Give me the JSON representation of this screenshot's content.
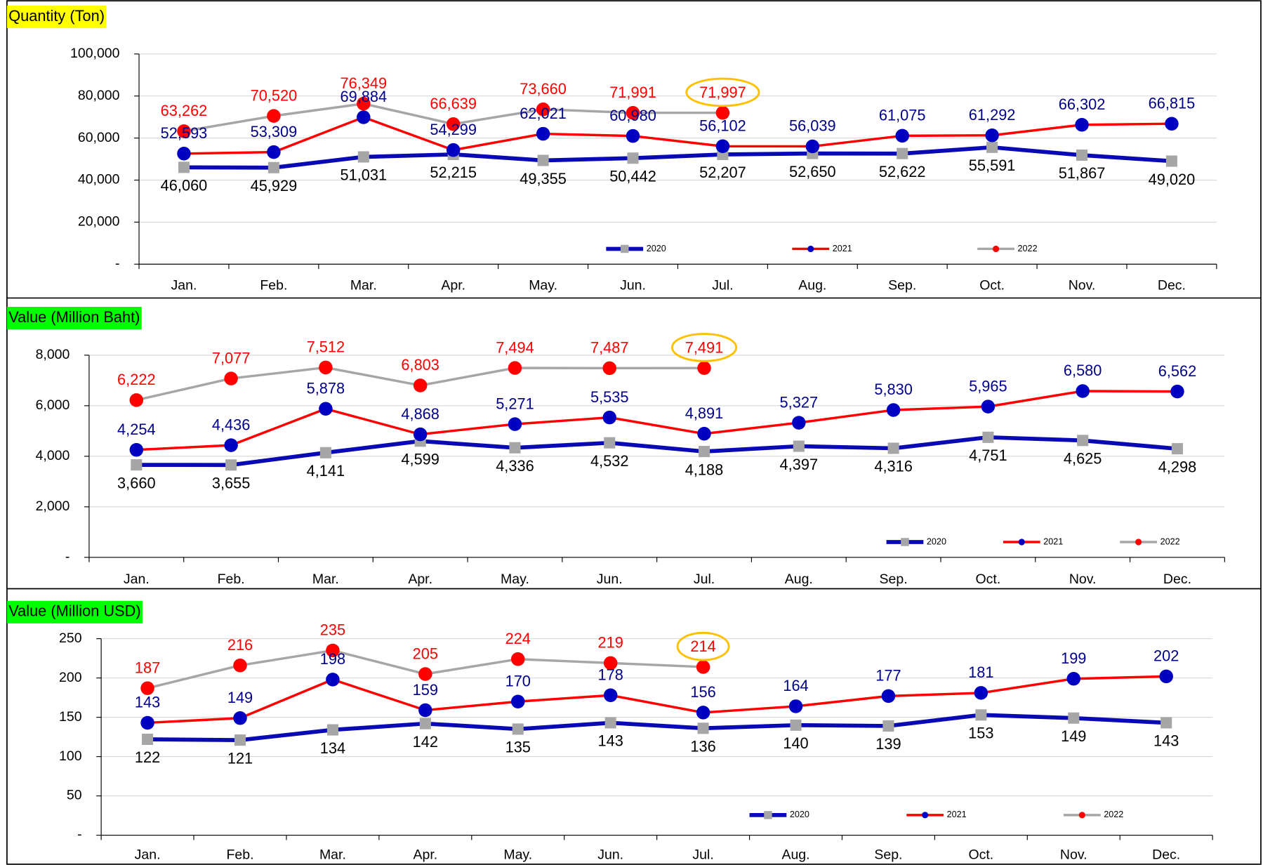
{
  "chart_data": [
    {
      "type": "line",
      "title": "Quantity (Ton)",
      "title_color": "#ffff00",
      "categories": [
        "Jan.",
        "Feb.",
        "Mar.",
        "Apr.",
        "May.",
        "Jun.",
        "Jul.",
        "Aug.",
        "Sep.",
        "Oct.",
        "Nov.",
        "Dec."
      ],
      "ylim": [
        0,
        100000
      ],
      "yticks": [
        {
          "value": 0,
          "label": "-"
        },
        {
          "value": 20000,
          "label": "20,000"
        },
        {
          "value": 40000,
          "label": "40,000"
        },
        {
          "value": 60000,
          "label": "60,000"
        },
        {
          "value": 80000,
          "label": "80,000"
        },
        {
          "value": 100000,
          "label": "100,000"
        }
      ],
      "grid": true,
      "series": [
        {
          "name": "2020",
          "color": "#0a0ab4",
          "marker": "square",
          "marker_color": "#a6a6a6",
          "label_color": "#000000",
          "values": [
            46060,
            45929,
            51031,
            52215,
            49355,
            50442,
            52207,
            52650,
            52622,
            55591,
            51867,
            49020
          ],
          "value_labels": [
            "46,060",
            "45,929",
            "51,031",
            "52,215",
            "49,355",
            "50,442",
            "52,207",
            "52,650",
            "52,622",
            "55,591",
            "51,867",
            "49,020"
          ]
        },
        {
          "name": "2021",
          "color": "#ff0000",
          "marker": "circle",
          "marker_color": "#0000c0",
          "label_color": "#00008b",
          "values": [
            52593,
            53309,
            69884,
            54299,
            62021,
            60980,
            56102,
            56039,
            61075,
            61292,
            66302,
            66815
          ],
          "value_labels": [
            "52,593",
            "53,309",
            "69,884",
            "54,299",
            "62,021",
            "60,980",
            "56,102",
            "56,039",
            "61,075",
            "61,292",
            "66,302",
            "66,815"
          ]
        },
        {
          "name": "2022",
          "color": "#a6a6a6",
          "marker": "circle",
          "marker_color": "#ff0000",
          "label_color": "#ff0000",
          "values": [
            63262,
            70520,
            76349,
            66639,
            73660,
            71991,
            71997,
            null,
            null,
            null,
            null,
            null
          ],
          "value_labels": [
            "63,262",
            "70,520",
            "76,349",
            "66,639",
            "73,660",
            "71,991",
            "71,997",
            null,
            null,
            null,
            null,
            null
          ]
        }
      ]
    },
    {
      "type": "line",
      "title": "Value (Million Baht)",
      "title_color": "#00ff00",
      "categories": [
        "Jan.",
        "Feb.",
        "Mar.",
        "Apr.",
        "May.",
        "Jun.",
        "Jul.",
        "Aug.",
        "Sep.",
        "Oct.",
        "Nov.",
        "Dec."
      ],
      "ylim": [
        0,
        8000
      ],
      "yticks": [
        {
          "value": 0,
          "label": "-"
        },
        {
          "value": 2000,
          "label": "2,000"
        },
        {
          "value": 4000,
          "label": "4,000"
        },
        {
          "value": 6000,
          "label": "6,000"
        },
        {
          "value": 8000,
          "label": "8,000"
        }
      ],
      "grid": true,
      "series": [
        {
          "name": "2020",
          "color": "#0a0ab4",
          "marker": "square",
          "marker_color": "#a6a6a6",
          "label_color": "#000000",
          "values": [
            3660,
            3655,
            4141,
            4599,
            4336,
            4532,
            4188,
            4397,
            4316,
            4751,
            4625,
            4298
          ],
          "value_labels": [
            "3,660",
            "3,655",
            "4,141",
            "4,599",
            "4,336",
            "4,532",
            "4,188",
            "4,397",
            "4,316",
            "4,751",
            "4,625",
            "4,298"
          ]
        },
        {
          "name": "2021",
          "color": "#ff0000",
          "marker": "circle",
          "marker_color": "#0000c0",
          "label_color": "#00008b",
          "values": [
            4254,
            4436,
            5878,
            4868,
            5271,
            5535,
            4891,
            5327,
            5830,
            5965,
            6580,
            6562
          ],
          "value_labels": [
            "4,254",
            "4,436",
            "5,878",
            "4,868",
            "5,271",
            "5,535",
            "4,891",
            "5,327",
            "5,830",
            "5,965",
            "6,580",
            "6,562"
          ]
        },
        {
          "name": "2022",
          "color": "#a6a6a6",
          "marker": "circle",
          "marker_color": "#ff0000",
          "label_color": "#ff0000",
          "values": [
            6222,
            7077,
            7512,
            6803,
            7494,
            7487,
            7491,
            null,
            null,
            null,
            null,
            null
          ],
          "value_labels": [
            "6,222",
            "7,077",
            "7,512",
            "6,803",
            "7,494",
            "7,487",
            "7,491",
            null,
            null,
            null,
            null,
            null
          ]
        }
      ]
    },
    {
      "type": "line",
      "title": "Value (Million USD)",
      "title_color": "#00ff00",
      "categories": [
        "Jan.",
        "Feb.",
        "Mar.",
        "Apr.",
        "May.",
        "Jun.",
        "Jul.",
        "Aug.",
        "Sep.",
        "Oct.",
        "Nov.",
        "Dec."
      ],
      "ylim": [
        0,
        250
      ],
      "yticks": [
        {
          "value": 0,
          "label": "-"
        },
        50,
        100,
        150,
        200,
        250
      ],
      "grid": true,
      "series": [
        {
          "name": "2020",
          "color": "#0a0ab4",
          "marker": "square",
          "marker_color": "#a6a6a6",
          "label_color": "#000000",
          "values": [
            122,
            121,
            134,
            142,
            135,
            143,
            136,
            140,
            139,
            153,
            149,
            143
          ]
        },
        {
          "name": "2021",
          "color": "#ff0000",
          "marker": "circle",
          "marker_color": "#0000c0",
          "label_color": "#00008b",
          "values": [
            143,
            149,
            198,
            159,
            170,
            178,
            156,
            164,
            177,
            181,
            199,
            202
          ]
        },
        {
          "name": "2022",
          "color": "#a6a6a6",
          "marker": "circle",
          "marker_color": "#ff0000",
          "label_color": "#ff0000",
          "values": [
            187,
            216,
            235,
            205,
            224,
            219,
            214,
            null,
            null,
            null,
            null,
            null
          ]
        }
      ]
    }
  ]
}
